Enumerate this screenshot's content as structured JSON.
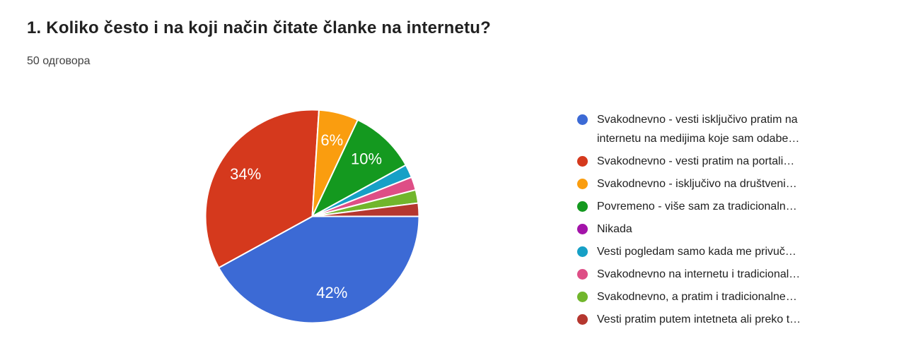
{
  "header": {
    "title": "1. Koliko često i na koji način čitate članke na internetu?",
    "responses_label": "50 одговора"
  },
  "colors": {
    "background": "#ffffff",
    "title_text": "#212121",
    "subtitle_text": "#424242",
    "legend_text": "#212121",
    "pie_label_text": "#ffffff",
    "slice_gap": "#ffffff"
  },
  "chart_data": {
    "type": "pie",
    "title": "1. Koliko često i na koji način čitate članke na internetu?",
    "subtitle": "50 одговора",
    "legend_position": "right",
    "start_angle_clockwise_from_top_deg": 90,
    "label_min_percent": 5,
    "slices": [
      {
        "label": "Svakodnevno - vesti isključivo pratim na internetu na medijima koje sam odabe…",
        "legend_lines": [
          "Svakodnevno - vesti isključivo pratim na",
          "internetu na medijima koje sam odabe…"
        ],
        "percent": 42,
        "pct_label": "42%",
        "color": "#3C6AD5"
      },
      {
        "label": "Svakodnevno - vesti pratim na portali…",
        "legend_lines": [
          "Svakodnevno - vesti pratim na portali…"
        ],
        "percent": 34,
        "pct_label": "34%",
        "color": "#D5391D"
      },
      {
        "label": "Svakodnevno - isključivo na društveni…",
        "legend_lines": [
          "Svakodnevno - isključivo na društveni…"
        ],
        "percent": 6,
        "pct_label": "6%",
        "color": "#FA9D0F"
      },
      {
        "label": "Povremeno - više sam za tradicionaln…",
        "legend_lines": [
          "Povremeno - više sam za tradicionaln…"
        ],
        "percent": 10,
        "pct_label": "10%",
        "color": "#14991F"
      },
      {
        "label": "Nikada",
        "legend_lines": [
          "Nikada"
        ],
        "percent": 0,
        "pct_label": null,
        "color": "#A313A9"
      },
      {
        "label": "Vesti pogledam samo kada me privuč…",
        "legend_lines": [
          "Vesti pogledam samo kada me privuč…"
        ],
        "percent": 2,
        "pct_label": null,
        "color": "#16A0C6"
      },
      {
        "label": "Svakodnevno na internetu i tradicional…",
        "legend_lines": [
          "Svakodnevno na internetu i tradicional…"
        ],
        "percent": 2,
        "pct_label": null,
        "color": "#DE4E86"
      },
      {
        "label": "Svakodnevno, a pratim i tradicionalne…",
        "legend_lines": [
          "Svakodnevno, a pratim i tradicionalne…"
        ],
        "percent": 2,
        "pct_label": null,
        "color": "#71B62C"
      },
      {
        "label": "Vesti pratim putem intetneta ali preko t…",
        "legend_lines": [
          "Vesti pratim putem intetneta ali preko t…"
        ],
        "percent": 2,
        "pct_label": null,
        "color": "#B5372F"
      }
    ]
  }
}
